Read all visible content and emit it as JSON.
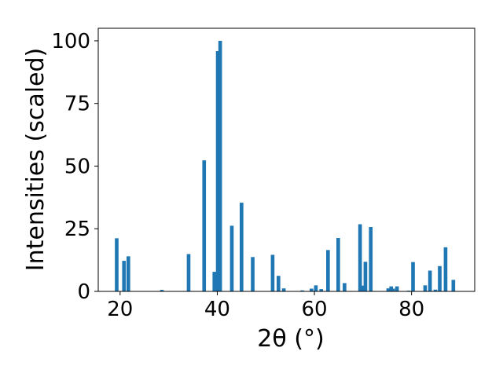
{
  "chart_data": {
    "type": "bar",
    "xlabel": "2θ (°)",
    "ylabel": "Intensities (scaled)",
    "xlim": [
      15.5,
      93.0
    ],
    "ylim": [
      0,
      105
    ],
    "xticks": [
      20,
      40,
      60,
      80
    ],
    "yticks": [
      0,
      25,
      50,
      75,
      100
    ],
    "bar_width": 0.75,
    "grid": false,
    "legend": "none",
    "color": "#1f77b4",
    "series": [
      {
        "x": [
          19.3,
          20.8,
          21.7,
          28.6,
          34.1,
          37.3,
          39.4,
          40.1,
          40.6,
          43.0,
          45.0,
          47.3,
          51.4,
          52.6,
          53.7,
          57.5,
          59.4,
          60.3,
          61.4,
          62.8,
          64.9,
          66.2,
          69.4,
          70.1,
          70.5,
          71.6,
          75.2,
          75.8,
          76.2,
          77.0,
          79.4,
          80.3,
          82.8,
          83.8,
          84.9,
          85.8,
          87.0,
          88.6
        ],
        "y": [
          21.2,
          12.2,
          14.0,
          0.6,
          14.9,
          52.3,
          7.8,
          95.9,
          100.0,
          26.2,
          35.4,
          13.7,
          14.6,
          6.2,
          1.2,
          0.4,
          1.1,
          2.4,
          0.9,
          16.5,
          21.3,
          3.3,
          26.8,
          2.3,
          11.8,
          25.7,
          1.2,
          2.0,
          1.1,
          2.0,
          0.3,
          11.7,
          2.4,
          8.3,
          0.7,
          10.1,
          17.6,
          4.6
        ]
      }
    ]
  }
}
